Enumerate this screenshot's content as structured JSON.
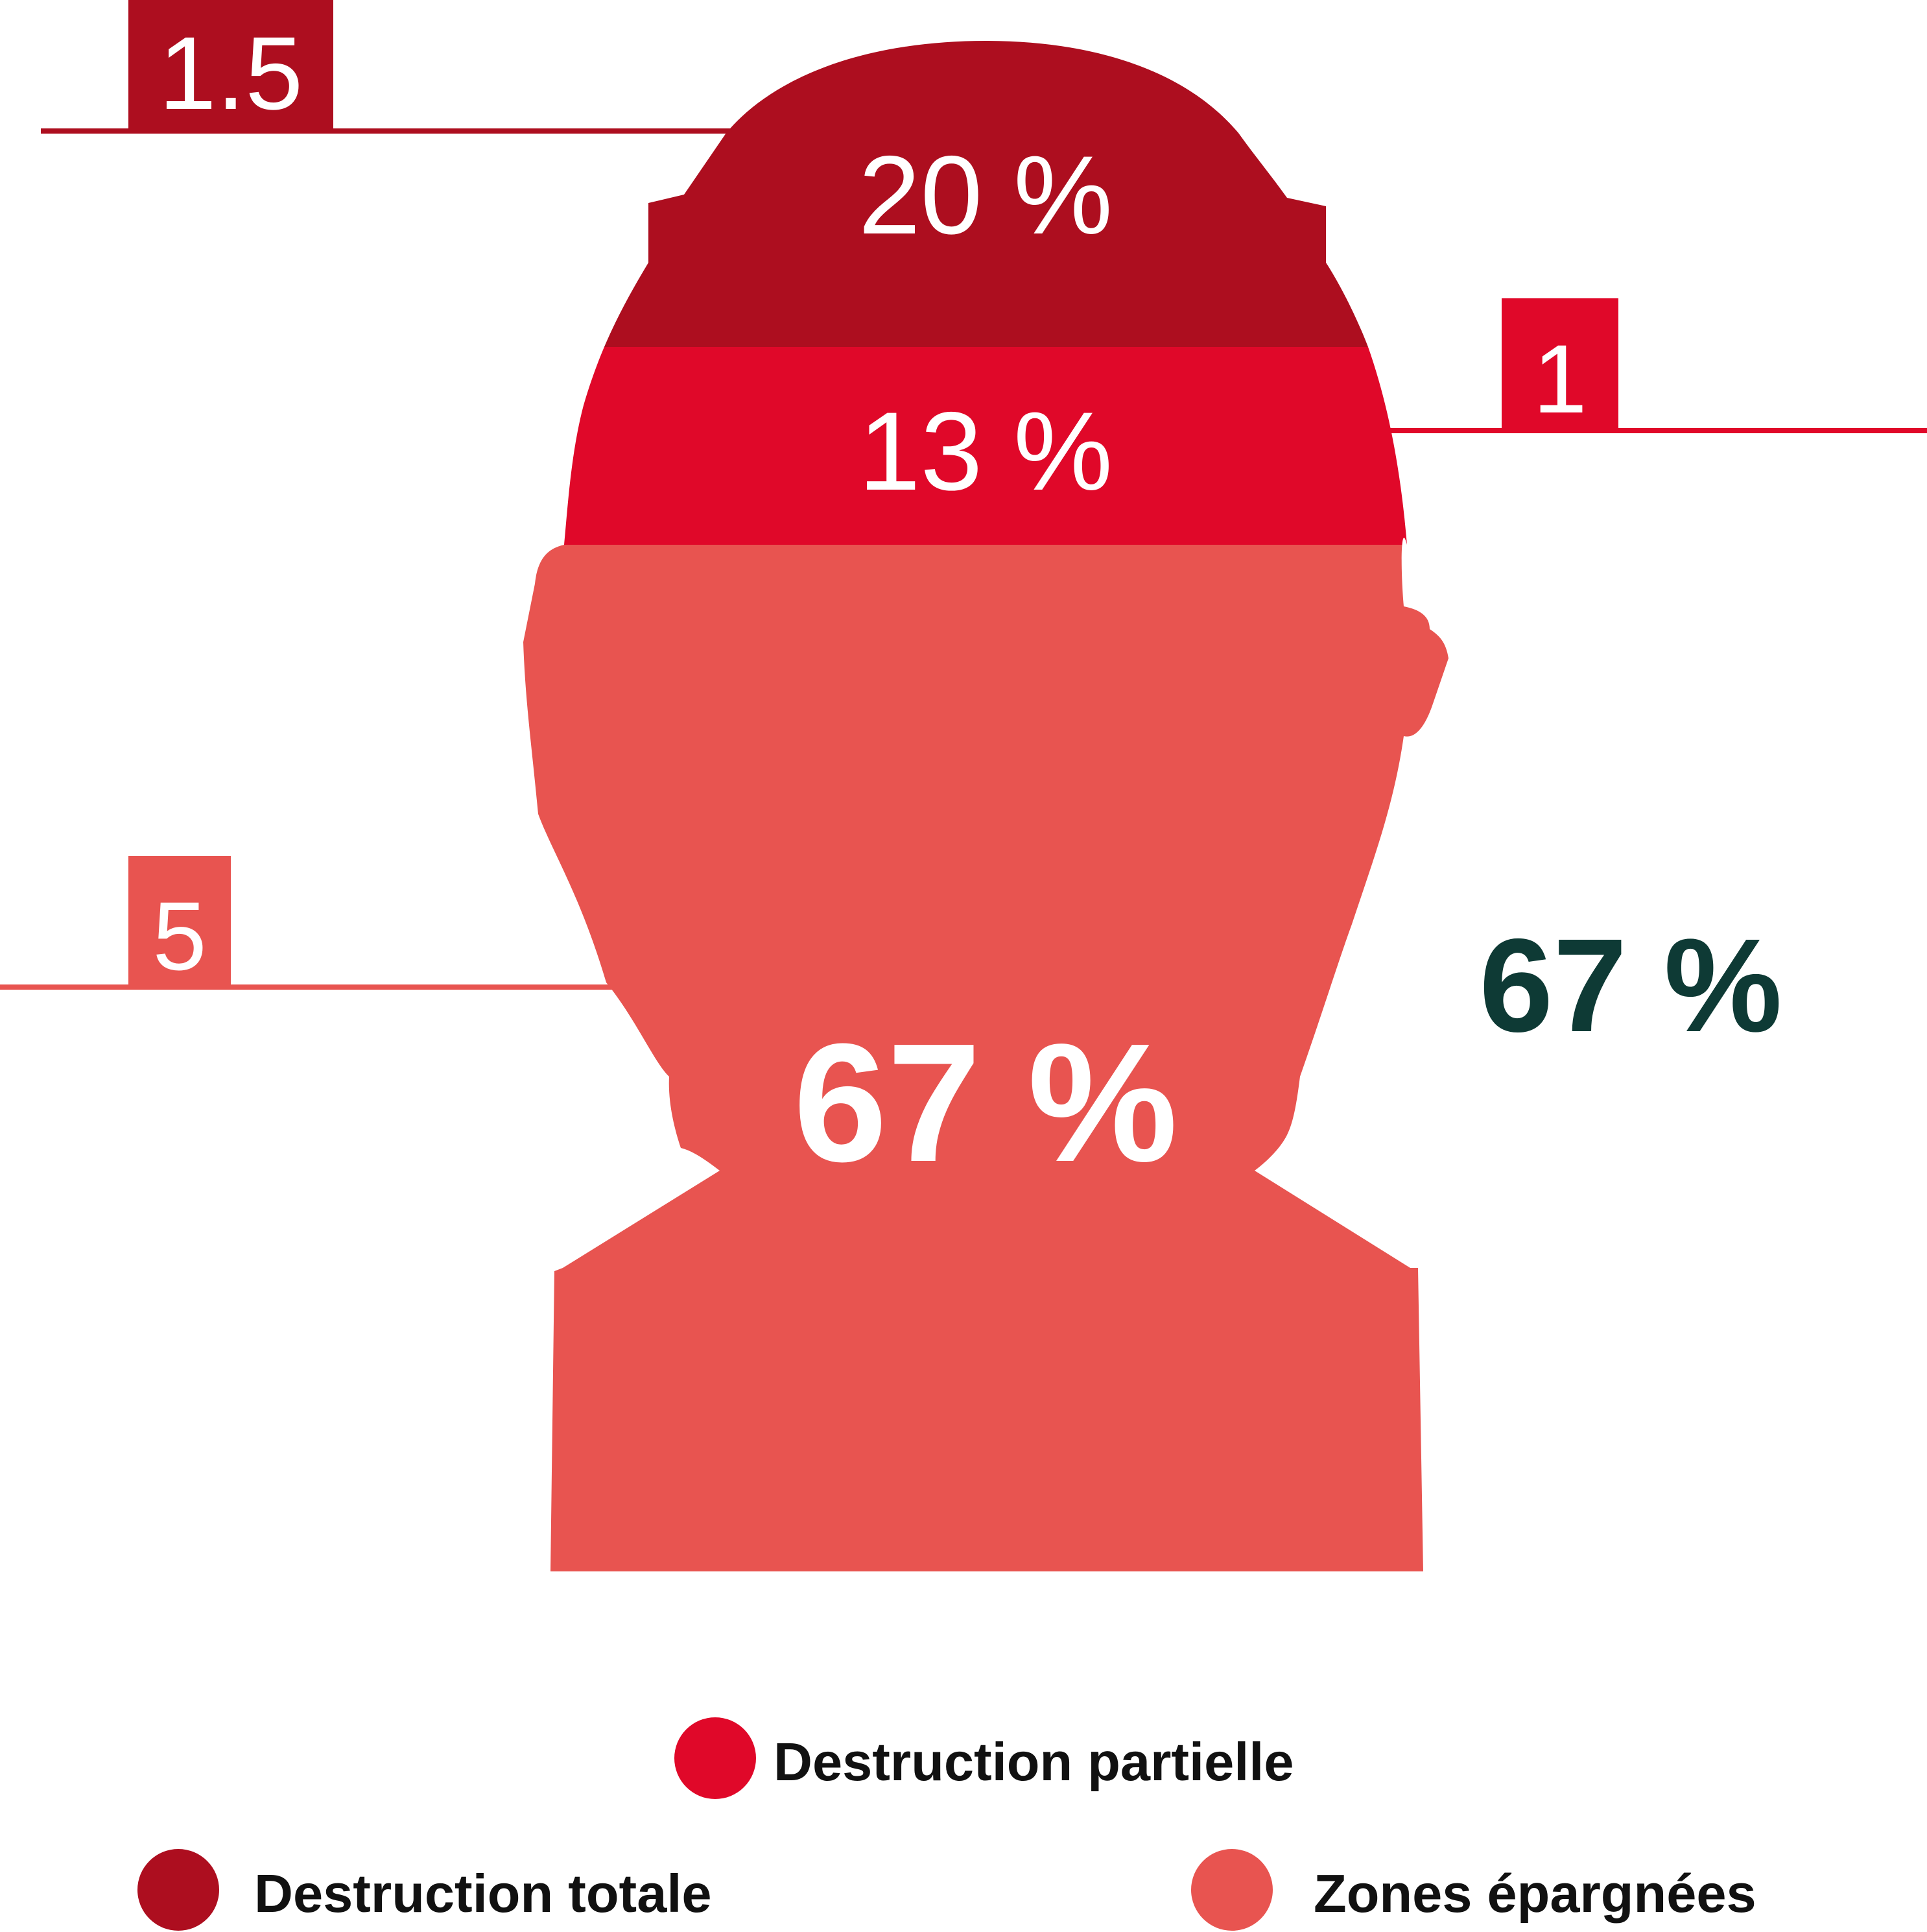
{
  "chart_data": {
    "type": "pictorial-stacked-bar",
    "segments": [
      {
        "key": "total",
        "value_label": "20 %",
        "value": 20,
        "height_label": "1.5",
        "color": "#ad0e1f"
      },
      {
        "key": "partial",
        "value_label": "13 %",
        "value": 13,
        "height_label": "1",
        "color": "#e00829"
      },
      {
        "key": "spared",
        "value_label": "67 %",
        "value": 67,
        "height_label": "5",
        "color": "#e85450"
      }
    ],
    "side_value_label": "67 %",
    "side_value_color": "#0e3a35",
    "legend": [
      {
        "label": "Destruction partielle",
        "color": "#e00829"
      },
      {
        "label": "Destruction totale",
        "color": "#ad0e1f"
      },
      {
        "label": "Zones épargnées",
        "color": "#e85450"
      }
    ]
  }
}
